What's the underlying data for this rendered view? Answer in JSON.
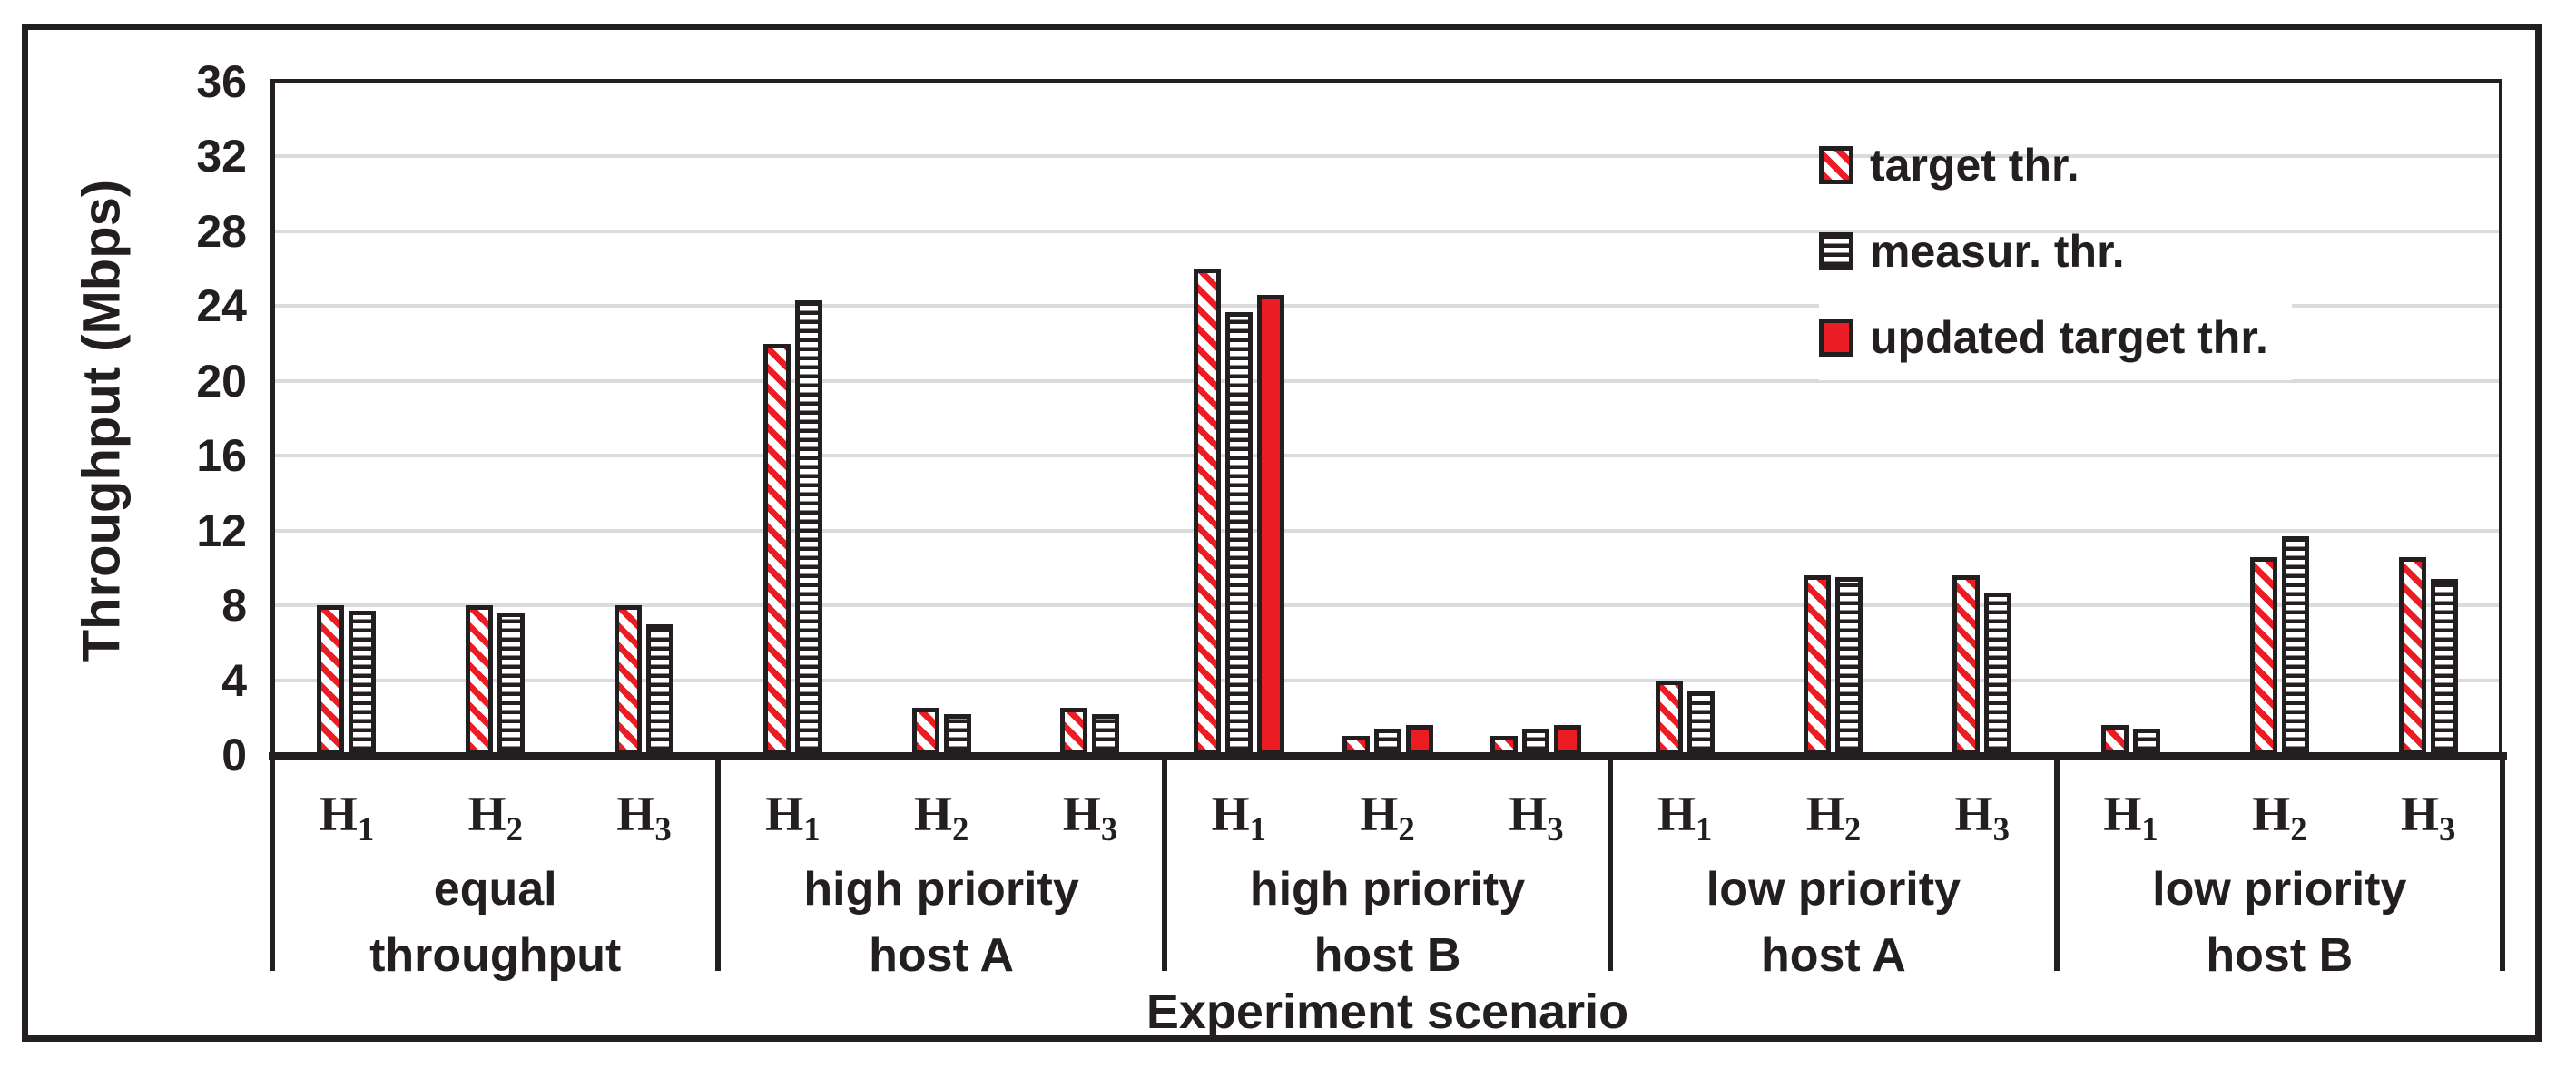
{
  "chart_data": {
    "type": "bar",
    "title": "",
    "xlabel": "Experiment scenario",
    "ylabel": "Throughput (Mbps)",
    "ylim": [
      0,
      36
    ],
    "yticks": [
      0,
      4,
      8,
      12,
      16,
      20,
      24,
      28,
      32,
      36
    ],
    "grid": "horizontal-light-gray",
    "legend_position": "inside-upper-right",
    "legend_items": [
      {
        "key": "target",
        "label": "target thr.",
        "style": "red-diagonal-hatch"
      },
      {
        "key": "measured",
        "label": "measur. thr.",
        "style": "black-horizontal-hatch"
      },
      {
        "key": "updated",
        "label": "updated target thr.",
        "style": "solid-red"
      }
    ],
    "groups": [
      {
        "label_lines": [
          "equal",
          "throughput"
        ],
        "hosts": [
          {
            "label": "H",
            "sub": "1",
            "target": 8.0,
            "measured": 7.7,
            "updated": null
          },
          {
            "label": "H",
            "sub": "2",
            "target": 8.0,
            "measured": 7.6,
            "updated": null
          },
          {
            "label": "H",
            "sub": "3",
            "target": 8.0,
            "measured": 7.0,
            "updated": null
          }
        ]
      },
      {
        "label_lines": [
          "high priority",
          "host A"
        ],
        "hosts": [
          {
            "label": "H",
            "sub": "1",
            "target": 22.0,
            "measured": 24.3,
            "updated": null
          },
          {
            "label": "H",
            "sub": "2",
            "target": 2.5,
            "measured": 2.2,
            "updated": null
          },
          {
            "label": "H",
            "sub": "3",
            "target": 2.5,
            "measured": 2.2,
            "updated": null
          }
        ]
      },
      {
        "label_lines": [
          "high priority",
          "host B"
        ],
        "hosts": [
          {
            "label": "H",
            "sub": "1",
            "target": 26.0,
            "measured": 23.7,
            "updated": 24.6
          },
          {
            "label": "H",
            "sub": "2",
            "target": 1.0,
            "measured": 1.4,
            "updated": 1.6
          },
          {
            "label": "H",
            "sub": "3",
            "target": 1.0,
            "measured": 1.4,
            "updated": 1.6
          }
        ]
      },
      {
        "label_lines": [
          "low priority",
          "host A"
        ],
        "hosts": [
          {
            "label": "H",
            "sub": "1",
            "target": 4.0,
            "measured": 3.4,
            "updated": null
          },
          {
            "label": "H",
            "sub": "2",
            "target": 9.6,
            "measured": 9.5,
            "updated": null
          },
          {
            "label": "H",
            "sub": "3",
            "target": 9.6,
            "measured": 8.7,
            "updated": null
          }
        ]
      },
      {
        "label_lines": [
          "low priority",
          "host B"
        ],
        "hosts": [
          {
            "label": "H",
            "sub": "1",
            "target": 1.6,
            "measured": 1.4,
            "updated": null
          },
          {
            "label": "H",
            "sub": "2",
            "target": 10.6,
            "measured": 11.7,
            "updated": null
          },
          {
            "label": "H",
            "sub": "3",
            "target": 10.6,
            "measured": 9.4,
            "updated": null
          }
        ]
      }
    ],
    "colors": {
      "red": "#EC1C24",
      "near_black": "#231F20",
      "gridline": "#DADBDC"
    }
  }
}
